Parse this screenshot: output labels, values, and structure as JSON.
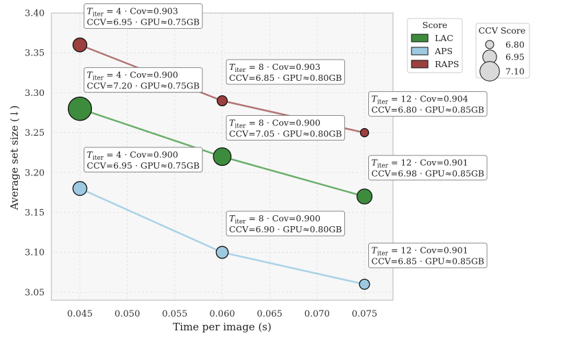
{
  "chart_data": {
    "type": "scatter",
    "xlabel": "Time per image (s)",
    "ylabel": "Average set size (↓)",
    "xlim": [
      0.042,
      0.078
    ],
    "ylim": [
      3.04,
      3.4
    ],
    "xticks": [
      "0.045",
      "0.050",
      "0.055",
      "0.060",
      "0.065",
      "0.070",
      "0.075"
    ],
    "yticks": [
      "3.05",
      "3.10",
      "3.15",
      "3.20",
      "3.25",
      "3.30",
      "3.35",
      "3.40"
    ],
    "grid": true,
    "series": [
      {
        "name": "LAC",
        "color": "#3d8c3d",
        "line_color": "#6aae6a",
        "points": [
          {
            "x": 0.045,
            "y": 3.28,
            "ccv": 7.2,
            "label1_sub": "iter",
            "label1_rest": " = 4 · Cov=0.900",
            "label2": "CCV=7.20 · GPU≈0.75GB"
          },
          {
            "x": 0.06,
            "y": 3.22,
            "ccv": 7.05,
            "label1_sub": "iter",
            "label1_rest": " = 8 · Cov=0.900",
            "label2": "CCV=7.05 · GPU≈0.80GB"
          },
          {
            "x": 0.075,
            "y": 3.17,
            "ccv": 6.98,
            "label1_sub": "iter",
            "label1_rest": " = 12 · Cov=0.901",
            "label2": "CCV=6.98 · GPU≈0.85GB"
          }
        ]
      },
      {
        "name": "APS",
        "color": "#9ecae1",
        "line_color": "#a9d2e6",
        "points": [
          {
            "x": 0.045,
            "y": 3.18,
            "ccv": 6.95,
            "label1_sub": "iter",
            "label1_rest": " = 4 · Cov=0.900",
            "label2": "CCV=6.95 · GPU≈0.75GB"
          },
          {
            "x": 0.06,
            "y": 3.1,
            "ccv": 6.9,
            "label1_sub": "iter",
            "label1_rest": " = 8 · Cov=0.900",
            "label2": "CCV=6.90 · GPU≈0.80GB"
          },
          {
            "x": 0.075,
            "y": 3.06,
            "ccv": 6.85,
            "label1_sub": "iter",
            "label1_rest": " = 12 · Cov=0.901",
            "label2": "CCV=6.85 · GPU≈0.85GB"
          }
        ]
      },
      {
        "name": "RAPS",
        "color": "#9b3f3f",
        "line_color": "#b27474",
        "points": [
          {
            "x": 0.045,
            "y": 3.36,
            "ccv": 6.95,
            "label1_sub": "iter",
            "label1_rest": " = 4 · Cov=0.903",
            "label2": "CCV=6.95 · GPU≈0.75GB"
          },
          {
            "x": 0.06,
            "y": 3.29,
            "ccv": 6.85,
            "label1_sub": "iter",
            "label1_rest": " = 8 · Cov=0.903",
            "label2": "CCV=6.85 · GPU≈0.80GB"
          },
          {
            "x": 0.075,
            "y": 3.25,
            "ccv": 6.8,
            "label1_sub": "iter",
            "label1_rest": " = 12 · Cov=0.904",
            "label2": "CCV=6.80 · GPU≈0.85GB"
          }
        ]
      }
    ],
    "label_prefix": "T",
    "legend_score": {
      "title": "Score",
      "entries": [
        "LAC",
        "APS",
        "RAPS"
      ],
      "placement": "outside-right"
    },
    "legend_size": {
      "title": "CCV Score",
      "entries": [
        {
          "value": 6.8,
          "label": "6.80"
        },
        {
          "value": 6.95,
          "label": "6.95"
        },
        {
          "value": 7.1,
          "label": "7.10"
        }
      ],
      "placement": "outside-right"
    }
  }
}
